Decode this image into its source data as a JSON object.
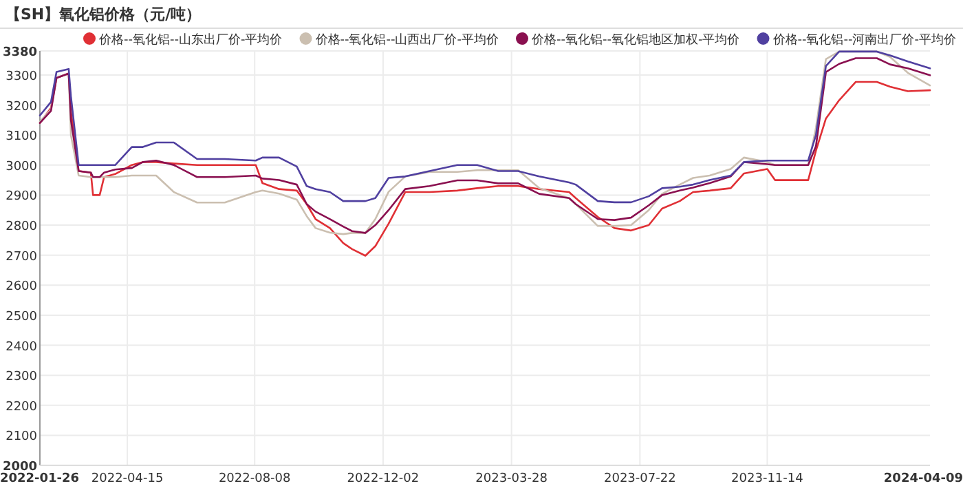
{
  "chart_data": {
    "type": "line",
    "title": "【SH】氧化铝价格（元/吨）",
    "x": [
      "2022-01-26",
      "2022-02-05",
      "2022-02-10",
      "2022-02-21",
      "2022-02-23",
      "2022-03-02",
      "2022-03-13",
      "2022-03-15",
      "2022-03-21",
      "2022-03-25",
      "2022-04-04",
      "2022-04-19",
      "2022-04-29",
      "2022-05-11",
      "2022-05-27",
      "2022-06-17",
      "2022-07-12",
      "2022-08-09",
      "2022-08-15",
      "2022-08-30",
      "2022-09-15",
      "2022-09-24",
      "2022-10-02",
      "2022-10-15",
      "2022-10-27",
      "2022-11-04",
      "2022-11-16",
      "2022-11-25",
      "2022-12-07",
      "2022-12-22",
      "2023-01-13",
      "2023-02-07",
      "2023-02-25",
      "2023-03-16",
      "2023-04-03",
      "2023-04-22",
      "2023-05-19",
      "2023-05-25",
      "2023-06-14",
      "2023-06-29",
      "2023-07-14",
      "2023-07-30",
      "2023-08-11",
      "2023-08-27",
      "2023-09-08",
      "2023-09-23",
      "2023-10-12",
      "2023-10-24",
      "2023-11-14",
      "2023-11-21",
      "2023-12-06",
      "2023-12-21",
      "2023-12-28",
      "2024-01-06",
      "2024-01-18",
      "2024-02-02",
      "2024-02-21",
      "2024-03-04",
      "2024-03-20",
      "2024-04-09"
    ],
    "series": [
      {
        "name": "价格--氧化铝--山东出厂价-平均价",
        "color": "#e03035",
        "values": [
          3140,
          3190,
          3290,
          3305,
          3180,
          2980,
          2975,
          2900,
          2900,
          2960,
          2970,
          3000,
          3010,
          3010,
          3005,
          3000,
          3000,
          3000,
          2940,
          2920,
          2915,
          2870,
          2820,
          2790,
          2740,
          2720,
          2698,
          2730,
          2805,
          2910,
          2910,
          2915,
          2923,
          2930,
          2930,
          2920,
          2910,
          2890,
          2827,
          2790,
          2782,
          2800,
          2855,
          2880,
          2910,
          2915,
          2923,
          2972,
          2987,
          2950,
          2950,
          2950,
          3048,
          3155,
          3216,
          3277,
          3277,
          3261,
          3246,
          3249
        ]
      },
      {
        "name": "价格--氧化铝--山西出厂价-平均价",
        "color": "#cbbfb0",
        "values": [
          3145,
          3185,
          3290,
          3305,
          3100,
          2965,
          2960,
          2960,
          2960,
          2960,
          2960,
          2965,
          2965,
          2965,
          2910,
          2875,
          2875,
          2910,
          2915,
          2905,
          2885,
          2830,
          2790,
          2775,
          2770,
          2774,
          2774,
          2820,
          2911,
          2962,
          2977,
          2977,
          2983,
          2983,
          2983,
          2923,
          2890,
          2870,
          2797,
          2797,
          2800,
          2850,
          2904,
          2935,
          2957,
          2965,
          2987,
          3025,
          3010,
          3000,
          3000,
          3000,
          3124,
          3353,
          3378,
          3378,
          3378,
          3360,
          3307,
          3265
        ]
      },
      {
        "name": "价格--氧化铝--氧化铝地区加权-平均价",
        "color": "#8a1050",
        "values": [
          3140,
          3180,
          3290,
          3305,
          3150,
          2980,
          2975,
          2960,
          2960,
          2975,
          2985,
          2990,
          3010,
          3015,
          3000,
          2960,
          2960,
          2965,
          2955,
          2950,
          2935,
          2870,
          2845,
          2820,
          2795,
          2780,
          2774,
          2800,
          2850,
          2920,
          2930,
          2949,
          2949,
          2939,
          2939,
          2904,
          2890,
          2870,
          2820,
          2817,
          2825,
          2866,
          2900,
          2915,
          2925,
          2940,
          2962,
          3010,
          3003,
          3000,
          3000,
          3000,
          3063,
          3310,
          3337,
          3356,
          3356,
          3335,
          3322,
          3299
        ]
      },
      {
        "name": "价格--氧化铝--河南出厂价-平均价",
        "color": "#5040a0",
        "values": [
          3165,
          3210,
          3310,
          3320,
          3230,
          3000,
          3000,
          3000,
          3000,
          3000,
          3000,
          3060,
          3060,
          3075,
          3075,
          3020,
          3020,
          3015,
          3025,
          3025,
          2995,
          2930,
          2920,
          2910,
          2880,
          2880,
          2880,
          2890,
          2957,
          2962,
          2980,
          3000,
          3000,
          2980,
          2980,
          2962,
          2942,
          2935,
          2880,
          2876,
          2876,
          2896,
          2923,
          2928,
          2935,
          2950,
          2965,
          3010,
          3015,
          3015,
          3015,
          3015,
          3100,
          3330,
          3378,
          3378,
          3378,
          3365,
          3345,
          3322
        ]
      }
    ],
    "xlim": [
      "2022-01-26",
      "2024-04-09"
    ],
    "xticks": [
      {
        "value": "2022-01-26",
        "label": "2022-01-26"
      },
      {
        "value": "2022-04-15",
        "label": "2022-04-15"
      },
      {
        "value": "2022-08-08",
        "label": "2022-08-08"
      },
      {
        "value": "2022-12-02",
        "label": "2022-12-02"
      },
      {
        "value": "2023-03-28",
        "label": "2023-03-28"
      },
      {
        "value": "2023-07-22",
        "label": "2023-07-22"
      },
      {
        "value": "2023-11-14",
        "label": "2023-11-14"
      },
      {
        "value": "2024-04-09",
        "label": "2024-04-09"
      }
    ],
    "ylim": [
      2000,
      3380
    ],
    "yticks": [
      2000,
      2100,
      2200,
      2300,
      2400,
      2500,
      2600,
      2700,
      2800,
      2900,
      3000,
      3100,
      3200,
      3300,
      3380
    ],
    "grid": true,
    "legend": "top right",
    "marker": "none",
    "line_style": "solid"
  }
}
